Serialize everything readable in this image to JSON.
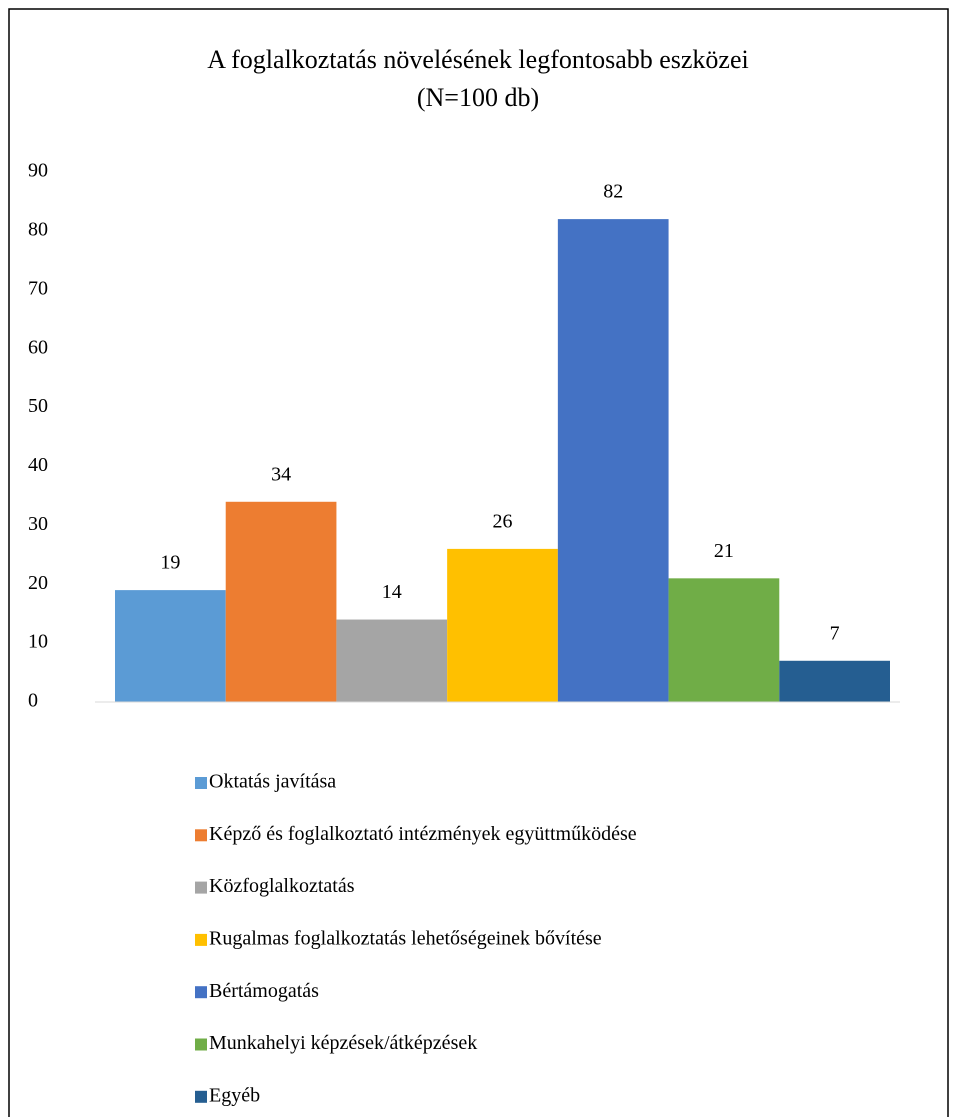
{
  "chart_data": {
    "type": "bar",
    "title": "A foglalkoztatás növelésének legfontosabb eszközei",
    "subtitle": "(N=100 db)",
    "categories": [
      null
    ],
    "series": [
      {
        "name": "Oktatás javítása",
        "color": "#5b9bd5",
        "values": [
          19
        ]
      },
      {
        "name": "Képző és foglalkoztató intézmények együttműködése",
        "color": "#ed7d31",
        "values": [
          34
        ]
      },
      {
        "name": "Közfoglalkoztatás",
        "color": "#a5a5a5",
        "values": [
          14
        ]
      },
      {
        "name": "Rugalmas foglalkoztatás lehetőségeinek bővítése",
        "color": "#ffc000",
        "values": [
          26
        ]
      },
      {
        "name": "Bértámogatás",
        "color": "#4472c4",
        "values": [
          82
        ]
      },
      {
        "name": "Munkahelyi képzések/átképzések",
        "color": "#70ad47",
        "values": [
          21
        ]
      },
      {
        "name": "Egyéb",
        "color": "#255e91",
        "values": [
          7
        ]
      }
    ],
    "ylim": [
      0,
      90
    ],
    "yticks": [
      0,
      10,
      20,
      30,
      40,
      50,
      60,
      70,
      80,
      90
    ],
    "grid": false,
    "legend": "bottom"
  }
}
